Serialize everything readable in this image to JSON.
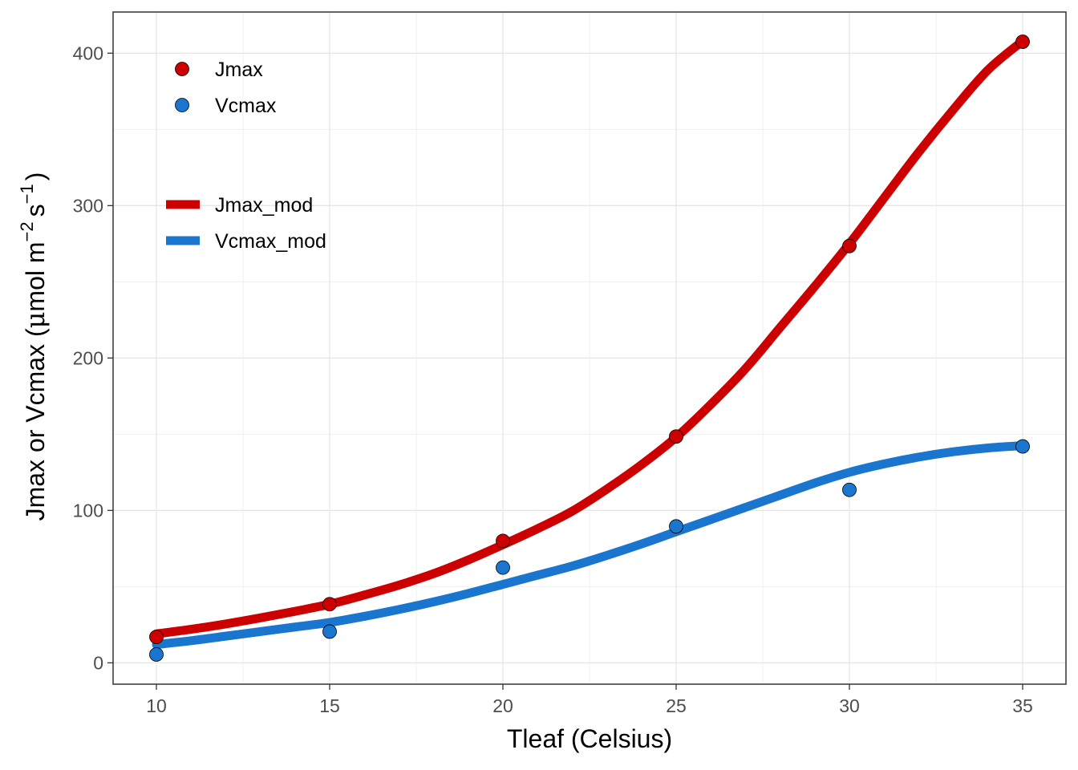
{
  "chart_data": {
    "type": "scatter",
    "xlabel": "Tleaf (Celsius)",
    "ylabel": {
      "prefix": "Jmax or Vcmax (",
      "mu": "μ",
      "mol_m": "mol m",
      "exp_m": "−2",
      "s": "s",
      "exp_s": "−1",
      "suffix": ")"
    },
    "xlim": [
      8.75,
      36.25
    ],
    "ylim": [
      -14,
      427
    ],
    "x_ticks": [
      10,
      15,
      20,
      25,
      30,
      35
    ],
    "y_ticks": [
      0,
      100,
      200,
      300,
      400
    ],
    "grid": true,
    "legend_position": "top-left",
    "points": [
      {
        "name": "Jmax",
        "color": "#cc0000",
        "x": [
          10,
          15,
          20,
          25,
          30,
          35
        ],
        "y": [
          17,
          38.5,
          80,
          148.5,
          273.5,
          407.5
        ]
      },
      {
        "name": "Vcmax",
        "color": "#1a75cf",
        "x": [
          10,
          15,
          20,
          25,
          30,
          35
        ],
        "y": [
          5.5,
          20.5,
          62.5,
          89.5,
          113.5,
          142
        ]
      }
    ],
    "lines": [
      {
        "name": "Jmax_mod",
        "color": "#cc0000",
        "x": [
          10,
          11,
          12,
          13,
          14,
          15,
          16,
          17,
          18,
          19,
          20,
          21,
          22,
          23,
          24,
          25,
          26,
          27,
          28,
          29,
          30,
          31,
          32,
          33,
          34,
          35
        ],
        "y": [
          19,
          22,
          25.5,
          29.5,
          33.8,
          38.5,
          44.5,
          51,
          58.5,
          67.5,
          77.5,
          88,
          99.5,
          114,
          130,
          148,
          169.5,
          193,
          220,
          247,
          275,
          305,
          335,
          363,
          389,
          408
        ]
      },
      {
        "name": "Vcmax_mod",
        "color": "#1a75cf",
        "x": [
          10,
          11,
          12,
          13,
          14,
          15,
          16,
          17,
          18,
          19,
          20,
          21,
          22,
          23,
          24,
          25,
          26,
          27,
          28,
          29,
          30,
          31,
          32,
          33,
          34,
          35
        ],
        "y": [
          12,
          14.5,
          17.5,
          20.5,
          23.5,
          26.5,
          30.5,
          35,
          40,
          45.5,
          51.5,
          57.5,
          63.5,
          70.5,
          78,
          86,
          94,
          102,
          110,
          118,
          125,
          130.5,
          135,
          138.5,
          141,
          142.5
        ]
      }
    ]
  }
}
